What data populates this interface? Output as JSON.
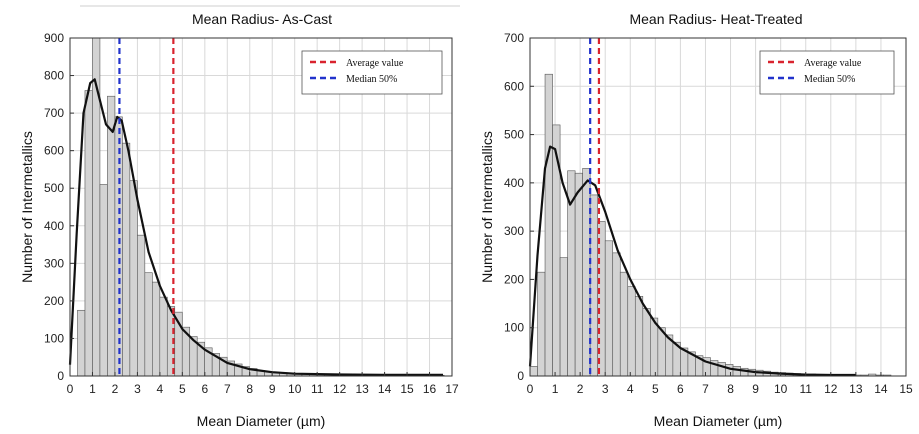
{
  "chart_data": [
    {
      "type": "bar",
      "title": "Mean Radius- As-Cast",
      "xlabel": "Mean Diameter (µm)",
      "ylabel": "Number of Intermetallics",
      "xlim": [
        0,
        17
      ],
      "ylim": [
        0,
        900
      ],
      "xticks": [
        "0",
        "1",
        "2",
        "3",
        "4",
        "5",
        "6",
        "7",
        "8",
        "9",
        "10",
        "11",
        "12",
        "13",
        "14",
        "15",
        "16",
        "17"
      ],
      "yticks": [
        "0",
        "100",
        "200",
        "300",
        "400",
        "500",
        "600",
        "700",
        "800",
        "900"
      ],
      "grid": true,
      "legend_position": "top-right",
      "bin_width": 0.333,
      "bin_start": 0,
      "values": [
        0,
        175,
        760,
        900,
        510,
        745,
        690,
        620,
        520,
        375,
        275,
        250,
        210,
        185,
        170,
        130,
        105,
        90,
        75,
        60,
        50,
        40,
        32,
        25,
        20,
        15,
        12,
        10,
        9,
        8,
        7,
        6,
        5,
        5,
        4,
        4,
        3,
        3,
        3,
        2,
        2,
        2,
        2,
        2,
        2,
        2,
        2,
        2,
        2,
        2
      ],
      "fit_curve": {
        "x": [
          0,
          0.3,
          0.6,
          0.9,
          1.1,
          1.35,
          1.6,
          1.9,
          2.1,
          2.3,
          2.6,
          3.0,
          3.5,
          4.0,
          4.5,
          5.0,
          5.5,
          6.0,
          7.0,
          8.0,
          9.0,
          10.0,
          12.0,
          14.0,
          16.6
        ],
        "y": [
          30,
          380,
          700,
          780,
          790,
          730,
          670,
          650,
          690,
          680,
          600,
          470,
          330,
          240,
          175,
          125,
          95,
          70,
          35,
          18,
          10,
          6,
          4,
          3,
          3
        ]
      },
      "vlines": [
        {
          "name": "Average value",
          "x": 4.6,
          "color": "#d9232e"
        },
        {
          "name": "Median 50%",
          "x": 2.2,
          "color": "#2233cc"
        }
      ]
    },
    {
      "type": "bar",
      "title": "Mean Radius- Heat-Treated",
      "xlabel": "Mean Diameter (µm)",
      "ylabel": "Number of Intermetallics",
      "xlim": [
        0,
        15
      ],
      "ylim": [
        0,
        700
      ],
      "xticks": [
        "0",
        "1",
        "2",
        "3",
        "4",
        "5",
        "6",
        "7",
        "8",
        "9",
        "10",
        "11",
        "12",
        "13",
        "14",
        "15"
      ],
      "yticks": [
        "0",
        "100",
        "200",
        "300",
        "400",
        "500",
        "600",
        "700"
      ],
      "grid": true,
      "legend_position": "top-right",
      "bin_width": 0.3,
      "bin_start": 0,
      "values": [
        20,
        215,
        625,
        520,
        245,
        425,
        420,
        430,
        375,
        320,
        280,
        255,
        215,
        185,
        165,
        140,
        120,
        100,
        85,
        70,
        58,
        50,
        42,
        38,
        32,
        28,
        24,
        20,
        16,
        14,
        12,
        10,
        8,
        7,
        6,
        5,
        4,
        4,
        3,
        3,
        2,
        2,
        2,
        2,
        2,
        4,
        2,
        2
      ],
      "fit_curve": {
        "x": [
          0,
          0.3,
          0.6,
          0.8,
          1.0,
          1.3,
          1.6,
          1.9,
          2.3,
          2.6,
          3.0,
          3.5,
          4.0,
          4.5,
          5.0,
          5.5,
          6.0,
          7.0,
          8.0,
          9.0,
          10.0,
          11.0,
          12.0,
          13.0
        ],
        "y": [
          20,
          250,
          430,
          475,
          470,
          400,
          355,
          380,
          405,
          395,
          340,
          260,
          200,
          150,
          110,
          80,
          58,
          30,
          15,
          8,
          5,
          3,
          2,
          2
        ]
      },
      "vlines": [
        {
          "name": "Average value",
          "x": 2.75,
          "color": "#d9232e"
        },
        {
          "name": "Median 50%",
          "x": 2.4,
          "color": "#2233cc"
        }
      ]
    }
  ]
}
